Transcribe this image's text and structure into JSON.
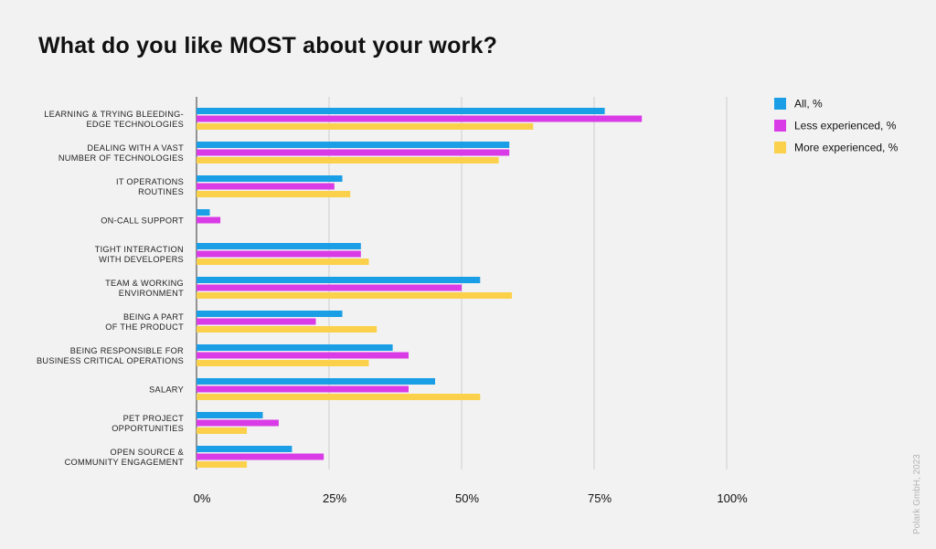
{
  "title": "What do you like MOST about your work?",
  "watermark": "Polark GmbH, 2023",
  "chart_data": {
    "type": "bar",
    "orientation": "horizontal",
    "title": "What do you like MOST about your work?",
    "categories": [
      [
        "LEARNING & TRYING BLEEDING-",
        "EDGE TECHNOLOGIES"
      ],
      [
        "DEALING WITH A VAST",
        "NUMBER OF TECHNOLOGIES"
      ],
      [
        "IT OPERATIONS",
        "ROUTINES"
      ],
      [
        "ON-CALL SUPPORT"
      ],
      [
        "TIGHT INTERACTION",
        "WITH DEVELOPERS"
      ],
      [
        "TEAM & WORKING",
        "ENVIRONMENT"
      ],
      [
        "BEING A PART",
        "OF THE PRODUCT"
      ],
      [
        "BEING RESPONSIBLE FOR",
        "BUSINESS CRITICAL OPERATIONS"
      ],
      [
        "SALARY"
      ],
      [
        "PET PROJECT",
        "OPPORTUNITIES"
      ],
      [
        "OPEN SOURCE &",
        "COMMUNITY ENGAGEMENT"
      ]
    ],
    "series": [
      {
        "name": "All, %",
        "color": "#1a9ee6",
        "values": [
          77,
          59,
          27.5,
          2.5,
          31,
          53.5,
          27.5,
          37,
          45,
          12.5,
          18
        ]
      },
      {
        "name": "Less experienced, %",
        "color": "#d93ce6",
        "values": [
          84,
          59,
          26,
          4.5,
          31,
          50,
          22.5,
          40,
          40,
          15.5,
          24
        ]
      },
      {
        "name": "More experienced, %",
        "color": "#fbd14b",
        "values": [
          63.5,
          57,
          29,
          0,
          32.5,
          59.5,
          34,
          32.5,
          53.5,
          9.5,
          9.5
        ]
      }
    ],
    "xlim": [
      0,
      100
    ],
    "xticks": [
      "0%",
      "25%",
      "50%",
      "75%",
      "100%"
    ],
    "xtick_values": [
      0,
      25,
      50,
      75,
      100
    ],
    "grid": true,
    "legend_position": "top-right"
  }
}
